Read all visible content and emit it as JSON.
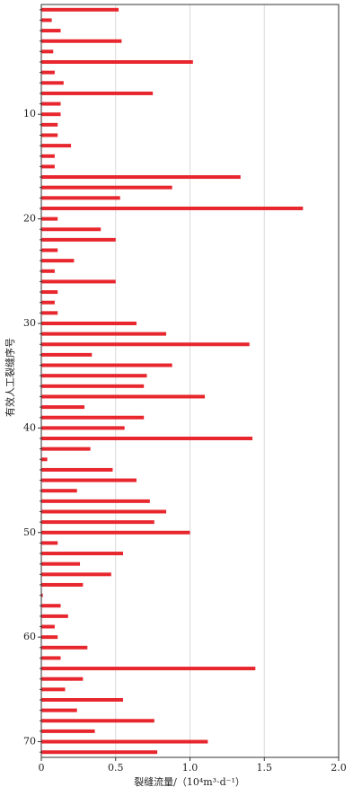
{
  "chart_data": {
    "type": "barh",
    "x_label": "裂缝流量/（10⁴m³·d⁻¹）",
    "y_label": "有效人工裂缝序号",
    "categories": [
      null,
      null,
      null,
      null,
      null,
      null,
      null,
      null,
      null,
      null,
      "10",
      null,
      null,
      null,
      null,
      null,
      null,
      null,
      null,
      null,
      "20",
      null,
      null,
      null,
      null,
      null,
      null,
      null,
      null,
      null,
      "30",
      null,
      null,
      null,
      null,
      null,
      null,
      null,
      null,
      null,
      "40",
      null,
      null,
      null,
      null,
      null,
      null,
      null,
      null,
      null,
      "50",
      null,
      null,
      null,
      null,
      null,
      null,
      null,
      null,
      null,
      "60",
      null,
      null,
      null,
      null,
      null,
      null,
      null,
      null,
      null,
      "70",
      null
    ],
    "values": [
      0.52,
      0.07,
      0.13,
      0.54,
      0.08,
      1.02,
      0.09,
      0.15,
      0.75,
      0.13,
      0.13,
      0.11,
      0.11,
      0.2,
      0.09,
      0.09,
      1.34,
      0.88,
      0.53,
      1.76,
      0.11,
      0.4,
      0.5,
      0.11,
      0.22,
      0.09,
      0.5,
      0.11,
      0.09,
      0.11,
      0.64,
      0.84,
      1.4,
      0.34,
      0.88,
      0.71,
      0.69,
      1.1,
      0.29,
      0.69,
      0.56,
      1.42,
      0.33,
      0.04,
      0.48,
      0.64,
      0.24,
      0.73,
      0.84,
      0.76,
      1.0,
      0.11,
      0.55,
      0.26,
      0.47,
      0.28,
      0.01,
      0.13,
      0.18,
      0.09,
      0.11,
      0.31,
      0.13,
      1.44,
      0.28,
      0.16,
      0.55,
      0.24,
      0.76,
      0.36,
      1.12,
      0.78
    ],
    "color": "#e8262d",
    "xlim": [
      0,
      2
    ],
    "xticks": [
      0,
      0.5,
      {
        "value": 1,
        "label": "1.0"
      },
      1.5,
      {
        "value": 2,
        "label": "2.0"
      }
    ],
    "grid": true
  }
}
